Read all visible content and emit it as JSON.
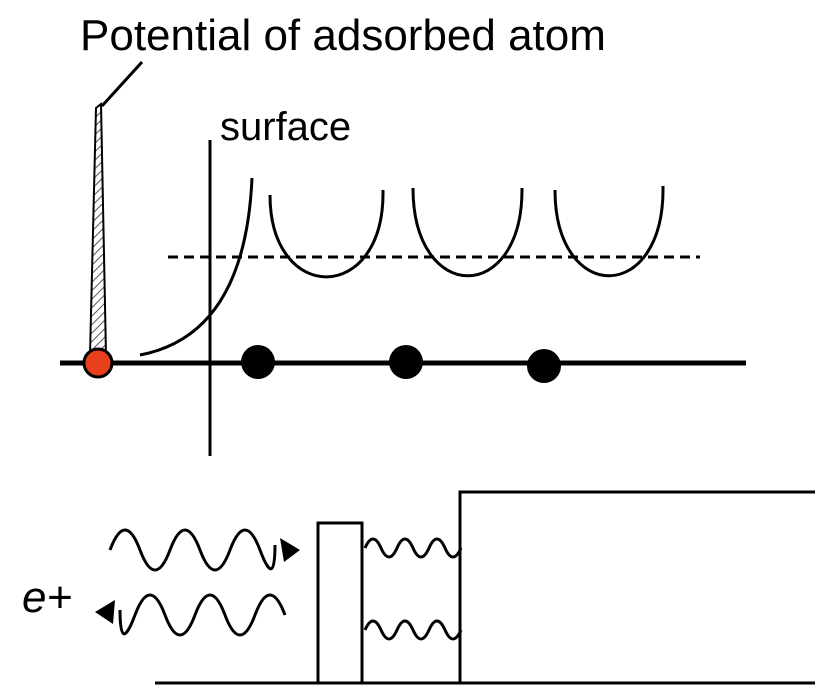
{
  "labels": {
    "title": "Potential of adsorbed atom",
    "surface": "surface",
    "positron": "e+"
  }
}
